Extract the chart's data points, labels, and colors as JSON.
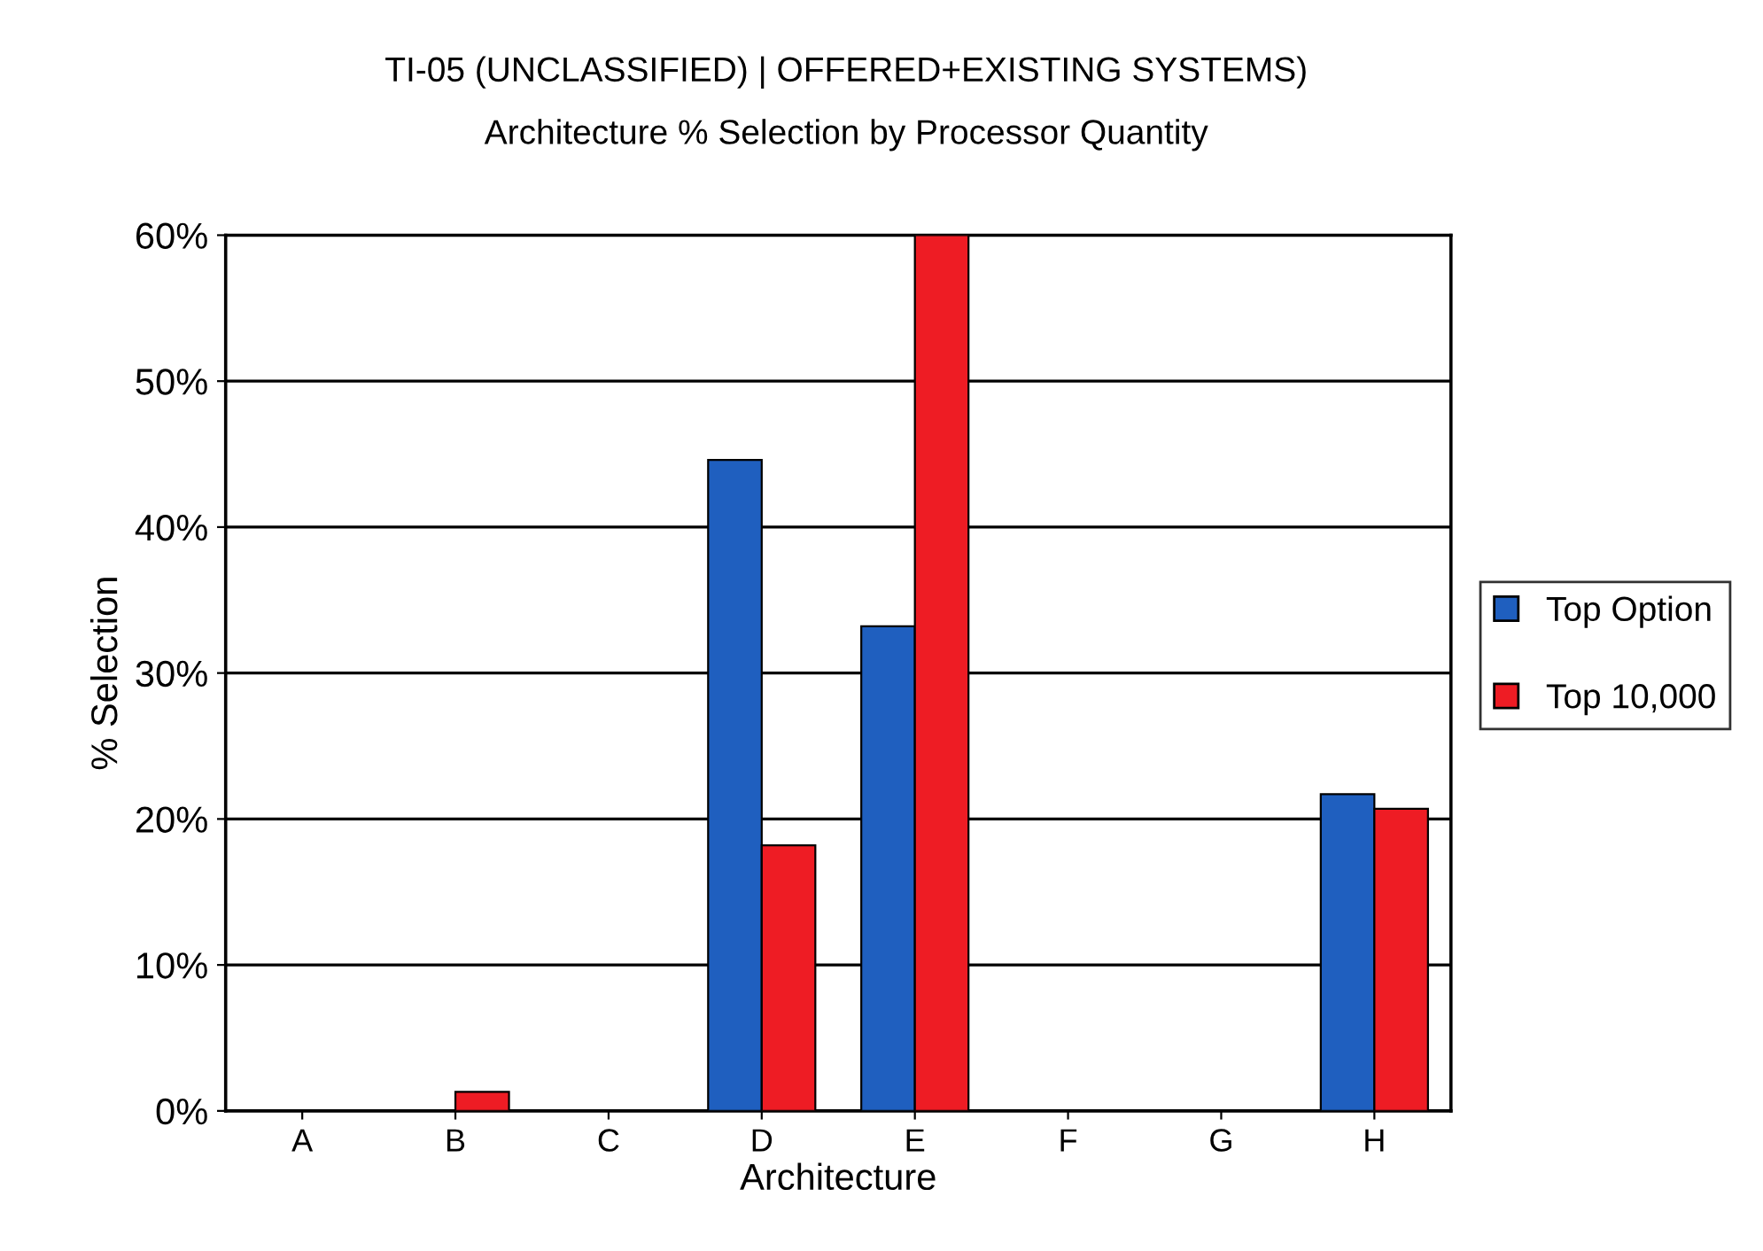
{
  "chart_data": {
    "type": "bar",
    "title": "TI-05 (UNCLASSIFIED) | OFFERED+EXISTING SYSTEMS)",
    "subtitle": "Architecture % Selection by Processor Quantity",
    "xlabel": "Architecture",
    "ylabel": "% Selection",
    "categories": [
      "A",
      "B",
      "C",
      "D",
      "E",
      "F",
      "G",
      "H"
    ],
    "series": [
      {
        "name": "Top Option",
        "color": "#1f5fbf",
        "values": [
          null,
          null,
          null,
          44.6,
          33.2,
          null,
          null,
          21.7
        ]
      },
      {
        "name": "Top 10,000",
        "color": "#ee1c24",
        "values": [
          null,
          1.3,
          null,
          18.2,
          60,
          null,
          null,
          20.7
        ]
      }
    ],
    "ylim": [
      0,
      60
    ],
    "yticks": [
      {
        "value": 0,
        "label": "0%"
      },
      {
        "value": 10,
        "label": "10%"
      },
      {
        "value": 20,
        "label": "20%"
      },
      {
        "value": 30,
        "label": "30%"
      },
      {
        "value": 40,
        "label": "40%"
      },
      {
        "value": 50,
        "label": "50%"
      },
      {
        "value": 60,
        "label": "60%"
      }
    ],
    "grid": "y",
    "legend": "right"
  }
}
